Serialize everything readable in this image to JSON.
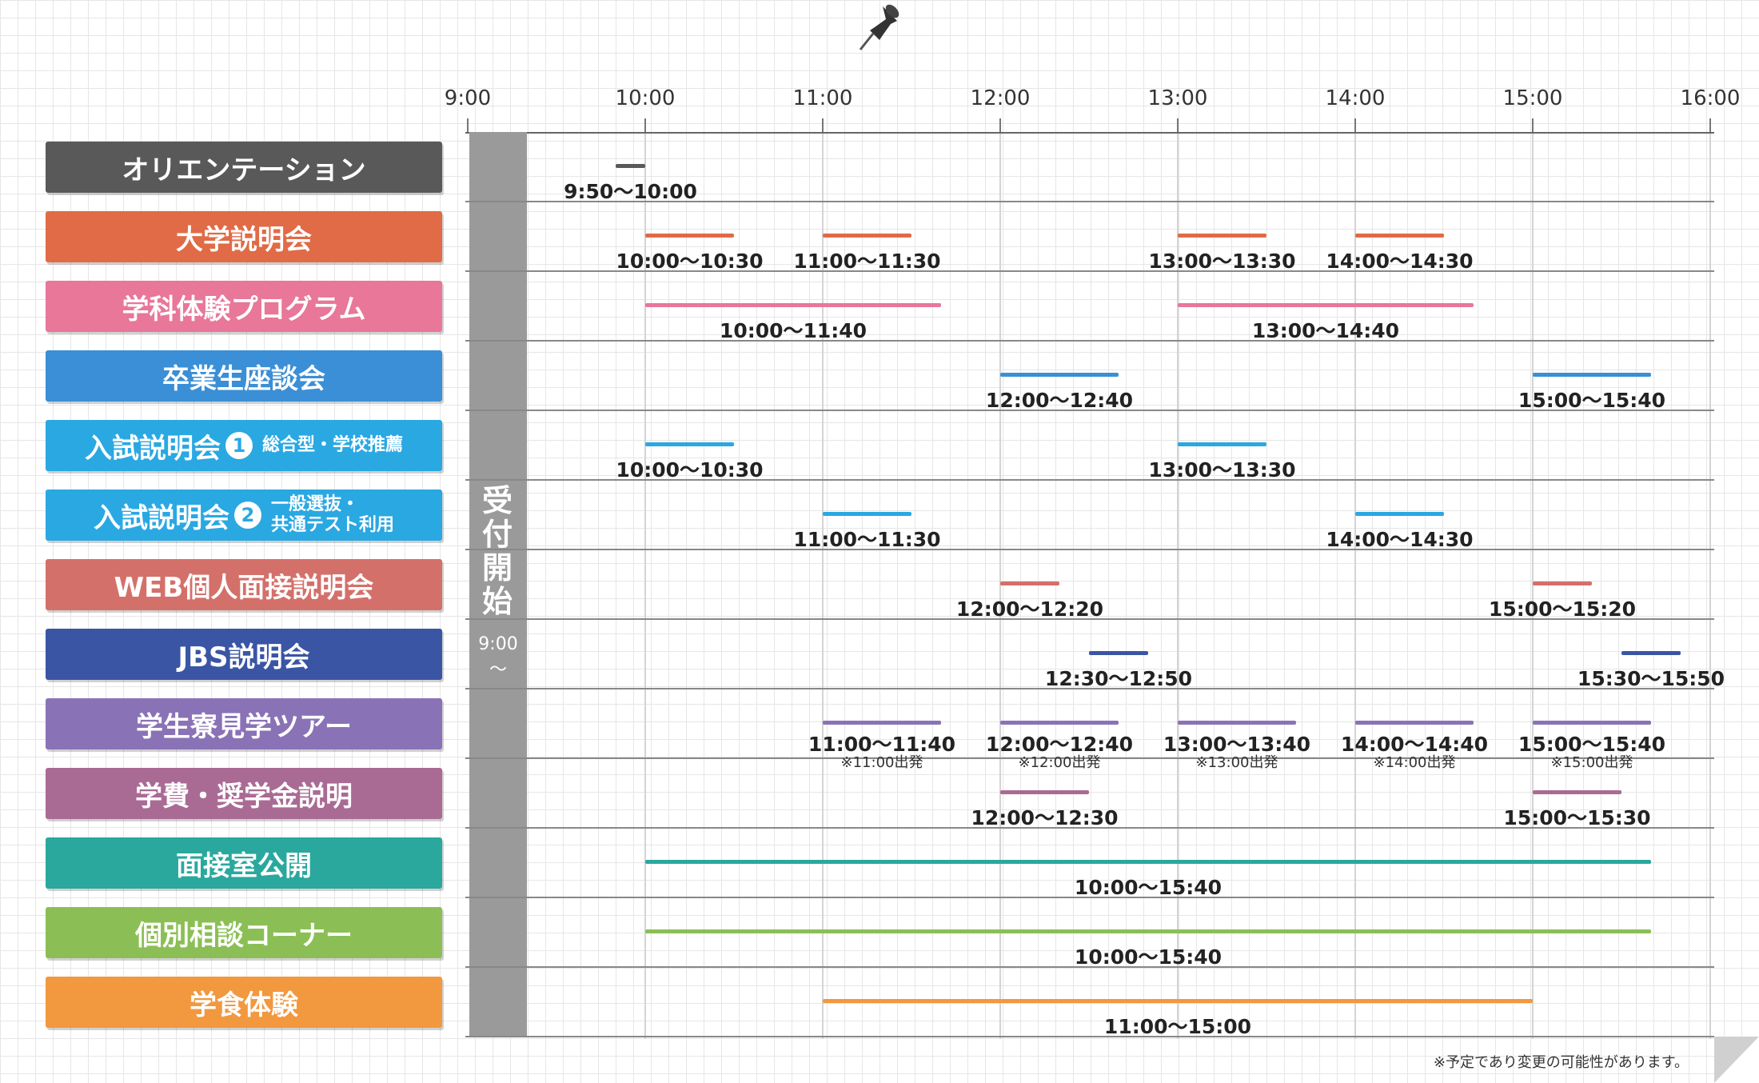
{
  "timeline": {
    "hours": [
      "9:00",
      "10:00",
      "11:00",
      "12:00",
      "13:00",
      "14:00",
      "15:00",
      "16:00"
    ]
  },
  "reception": {
    "title": "受付開始",
    "time": "9:00",
    "tilde": "〜",
    "color": "#9a9a9a"
  },
  "rows": [
    {
      "label": "オリエンテーション",
      "color": "#595959",
      "sessions": [
        {
          "start": "9:50",
          "end": "10:00",
          "text": "9:50〜10:00"
        }
      ]
    },
    {
      "label": "大学説明会",
      "color": "#e06b46",
      "sessions": [
        {
          "start": "10:00",
          "end": "10:30",
          "text": "10:00〜10:30"
        },
        {
          "start": "11:00",
          "end": "11:30",
          "text": "11:00〜11:30"
        },
        {
          "start": "13:00",
          "end": "13:30",
          "text": "13:00〜13:30"
        },
        {
          "start": "14:00",
          "end": "14:30",
          "text": "14:00〜14:30"
        }
      ]
    },
    {
      "label": "学科体験プログラム",
      "color": "#e8779a",
      "sessions": [
        {
          "start": "10:00",
          "end": "11:40",
          "text": "10:00〜11:40"
        },
        {
          "start": "13:00",
          "end": "14:40",
          "text": "13:00〜14:40"
        }
      ]
    },
    {
      "label": "卒業生座談会",
      "color": "#3a8fd6",
      "sessions": [
        {
          "start": "12:00",
          "end": "12:40",
          "text": "12:00〜12:40"
        },
        {
          "start": "15:00",
          "end": "15:40",
          "text": "15:00〜15:40"
        }
      ]
    },
    {
      "label": "入試説明会",
      "badge": "1",
      "sub": [
        "総合型・学校推薦"
      ],
      "color": "#2aa8e2",
      "sessions": [
        {
          "start": "10:00",
          "end": "10:30",
          "text": "10:00〜10:30"
        },
        {
          "start": "13:00",
          "end": "13:30",
          "text": "13:00〜13:30"
        }
      ]
    },
    {
      "label": "入試説明会",
      "badge": "2",
      "sub": [
        "一般選抜・",
        "共通テスト利用"
      ],
      "color": "#2aa8e2",
      "sessions": [
        {
          "start": "11:00",
          "end": "11:30",
          "text": "11:00〜11:30"
        },
        {
          "start": "14:00",
          "end": "14:30",
          "text": "14:00〜14:30"
        }
      ]
    },
    {
      "label": "WEB個人面接説明会",
      "color": "#d4706a",
      "sessions": [
        {
          "start": "12:00",
          "end": "12:20",
          "text": "12:00〜12:20"
        },
        {
          "start": "15:00",
          "end": "15:20",
          "text": "15:00〜15:20"
        }
      ]
    },
    {
      "label": "JBS説明会",
      "color": "#3a55a4",
      "sessions": [
        {
          "start": "12:30",
          "end": "12:50",
          "text": "12:30〜12:50"
        },
        {
          "start": "15:30",
          "end": "15:50",
          "text": "15:30〜15:50"
        }
      ]
    },
    {
      "label": "学生寮見学ツアー",
      "color": "#8a72b6",
      "sessions": [
        {
          "start": "11:00",
          "end": "11:40",
          "text": "11:00〜11:40",
          "note": "※11:00出発"
        },
        {
          "start": "12:00",
          "end": "12:40",
          "text": "12:00〜12:40",
          "note": "※12:00出発"
        },
        {
          "start": "13:00",
          "end": "13:40",
          "text": "13:00〜13:40",
          "note": "※13:00出発"
        },
        {
          "start": "14:00",
          "end": "14:40",
          "text": "14:00〜14:40",
          "note": "※14:00出発"
        },
        {
          "start": "15:00",
          "end": "15:40",
          "text": "15:00〜15:40",
          "note": "※15:00出発"
        }
      ]
    },
    {
      "label": "学費・奨学金説明",
      "color": "#a96b94",
      "sessions": [
        {
          "start": "12:00",
          "end": "12:30",
          "text": "12:00〜12:30"
        },
        {
          "start": "15:00",
          "end": "15:30",
          "text": "15:00〜15:30"
        }
      ]
    },
    {
      "label": "面接室公開",
      "color": "#2aa89e",
      "sessions": [
        {
          "start": "10:00",
          "end": "15:40",
          "text": "10:00〜15:40"
        }
      ]
    },
    {
      "label": "個別相談コーナー",
      "color": "#8bbf55",
      "sessions": [
        {
          "start": "10:00",
          "end": "15:40",
          "text": "10:00〜15:40"
        }
      ]
    },
    {
      "label": "学食体験",
      "color": "#f2983e",
      "sessions": [
        {
          "start": "11:00",
          "end": "15:00",
          "text": "11:00〜15:00"
        }
      ]
    }
  ],
  "footer": {
    "note": "※予定であり変更の可能性があります。"
  },
  "icons": {
    "pin": "pushpin-icon",
    "corner": "page-curl-icon"
  }
}
